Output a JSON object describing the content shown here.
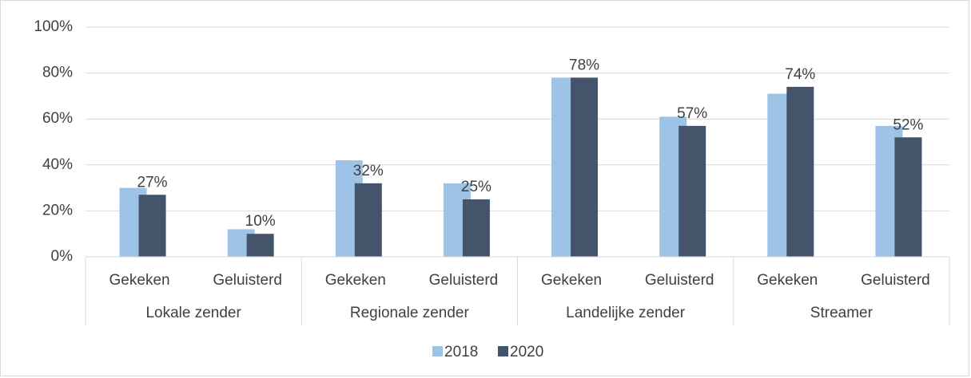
{
  "chart_data": {
    "type": "bar",
    "categories": [
      "Gekeken",
      "Geluisterd",
      "Gekeken",
      "Geluisterd",
      "Gekeken",
      "Geluisterd",
      "Gekeken",
      "Geluisterd"
    ],
    "category_groups": [
      "Lokale zender",
      "Regionale zender",
      "Landelijke zender",
      "Streamer"
    ],
    "series": [
      {
        "name": "2018",
        "color": "#9dc3e6",
        "values": [
          30,
          12,
          42,
          32,
          78,
          61,
          71,
          57
        ]
      },
      {
        "name": "2020",
        "color": "#44546a",
        "values": [
          27,
          10,
          32,
          25,
          78,
          57,
          74,
          52
        ],
        "value_labels": [
          "27%",
          "10%",
          "32%",
          "25%",
          "78%",
          "57%",
          "74%",
          "52%"
        ]
      }
    ],
    "ylim": [
      0,
      100
    ],
    "yticks": [
      {
        "value": 0,
        "label": "0%"
      },
      {
        "value": 20,
        "label": "20%"
      },
      {
        "value": 40,
        "label": "40%"
      },
      {
        "value": 60,
        "label": "60%"
      },
      {
        "value": 80,
        "label": "80%"
      },
      {
        "value": 100,
        "label": "100%"
      }
    ],
    "grid": true,
    "legend": "bottom"
  }
}
